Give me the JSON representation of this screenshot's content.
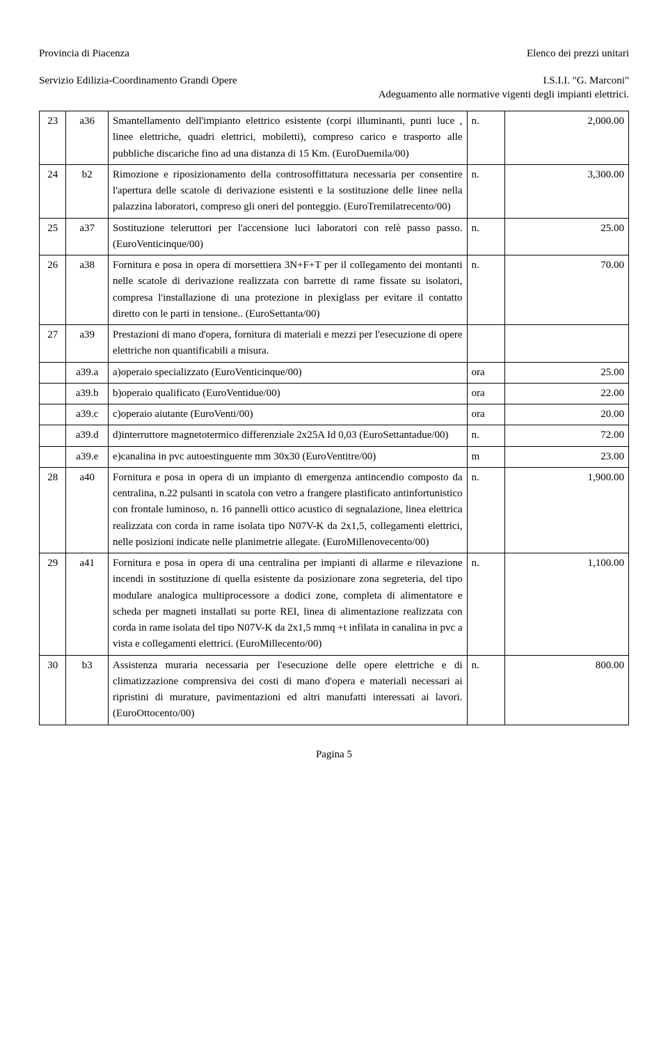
{
  "header": {
    "left_line1": "Provincia di Piacenza",
    "left_line2": "Servizio Edilizia-Coordinamento Grandi Opere",
    "right_line1": "Elenco dei prezzi unitari",
    "right_line2": "I.S.I.I. \"G. Marconi\"",
    "line3": "Adeguamento alle normative vigenti degli impianti elettrici."
  },
  "footer": "Pagina 5",
  "rows": [
    {
      "n": "23",
      "code": "a36",
      "desc": "Smantellamento dell'impianto elettrico esistente (corpi illuminanti, punti luce , linee elettriche, quadri elettrici, mobiletti), compreso carico e trasporto alle pubbliche discariche fino ad una distanza di 15 Km. (EuroDuemila/00)",
      "unit": "n.",
      "price": "2,000.00"
    },
    {
      "n": "24",
      "code": "b2",
      "desc": "Rimozione e riposizionamento della controsoffittatura necessaria per consentire l'apertura delle scatole di derivazione esistenti e la sostituzione delle linee nella palazzina laboratori, compreso gli oneri del ponteggio. (EuroTremilatrecento/00)",
      "unit": "n.",
      "price": "3,300.00"
    },
    {
      "n": "25",
      "code": "a37",
      "desc": "Sostituzione teleruttori per l'accensione luci laboratori con relè passo passo. (EuroVenticinque/00)",
      "unit": "n.",
      "price": "25.00"
    },
    {
      "n": "26",
      "code": "a38",
      "desc": "Fornitura e posa in opera di morsettiera 3N+F+T per il collegamento dei montanti nelle scatole di derivazione realizzata con barrette di rame fissate su isolatori, compresa l'installazione di una protezione in plexiglass per evitare il contatto diretto con le parti in tensione.. (EuroSettanta/00)",
      "unit": "n.",
      "price": "70.00"
    },
    {
      "n": "27",
      "code": "a39",
      "desc": "Prestazioni di mano d'opera, fornitura di materiali e mezzi per l'esecuzione di opere elettriche non quantificabili a misura.",
      "unit": "",
      "price": ""
    },
    {
      "n": "",
      "code": "a39.a",
      "desc": "a)operaio specializzato (EuroVenticinque/00)",
      "unit": "ora",
      "price": "25.00"
    },
    {
      "n": "",
      "code": "a39.b",
      "desc": "b)operaio qualificato (EuroVentidue/00)",
      "unit": "ora",
      "price": "22.00"
    },
    {
      "n": "",
      "code": "a39.c",
      "desc": "c)operaio aiutante (EuroVenti/00)",
      "unit": "ora",
      "price": "20.00"
    },
    {
      "n": "",
      "code": "a39.d",
      "desc": "d)interruttore magnetotermico differenziale 2x25A Id 0,03 (EuroSettantadue/00)",
      "unit": "n.",
      "price": "72.00"
    },
    {
      "n": "",
      "code": "a39.e",
      "desc": "e)canalina in pvc autoestinguente mm 30x30 (EuroVentitre/00)",
      "unit": "m",
      "price": "23.00"
    },
    {
      "n": "28",
      "code": "a40",
      "desc": "Fornitura e posa in opera di un impianto di emergenza antincendio composto da centralina, n.22 pulsanti in scatola con vetro a frangere plastificato antinfortunistico con frontale luminoso, n. 16 pannelli ottico acustico di segnalazione, linea elettrica realizzata con corda in rame isolata tipo N07V-K da 2x1,5, collegamenti elettrici, nelle posizioni indicate nelle planimetrie allegate. (EuroMillenovecento/00)",
      "unit": "n.",
      "price": "1,900.00"
    },
    {
      "n": "29",
      "code": "a41",
      "desc": "Fornitura e posa in opera di una centralina per impianti di allarme e rilevazione incendi in sostituzione di quella esistente da posizionare zona segreteria, del tipo modulare analogica multiprocessore a dodici zone, completa di alimentatore e scheda per magneti installati su porte REI, linea di alimentazione realizzata con corda in rame isolata del tipo N07V-K da 2x1,5 mmq +t infilata in canalina in pvc a vista e collegamenti elettrici. (EuroMillecento/00)",
      "unit": "n.",
      "price": "1,100.00"
    },
    {
      "n": "30",
      "code": "b3",
      "desc": "Assistenza muraria necessaria per l'esecuzione delle opere elettriche e di climatizzazione comprensiva dei costi di mano d'opera e materiali necessari ai ripristini di murature, pavimentazioni ed altri manufatti interessati ai lavori. (EuroOttocento/00)",
      "unit": "n.",
      "price": "800.00"
    }
  ]
}
